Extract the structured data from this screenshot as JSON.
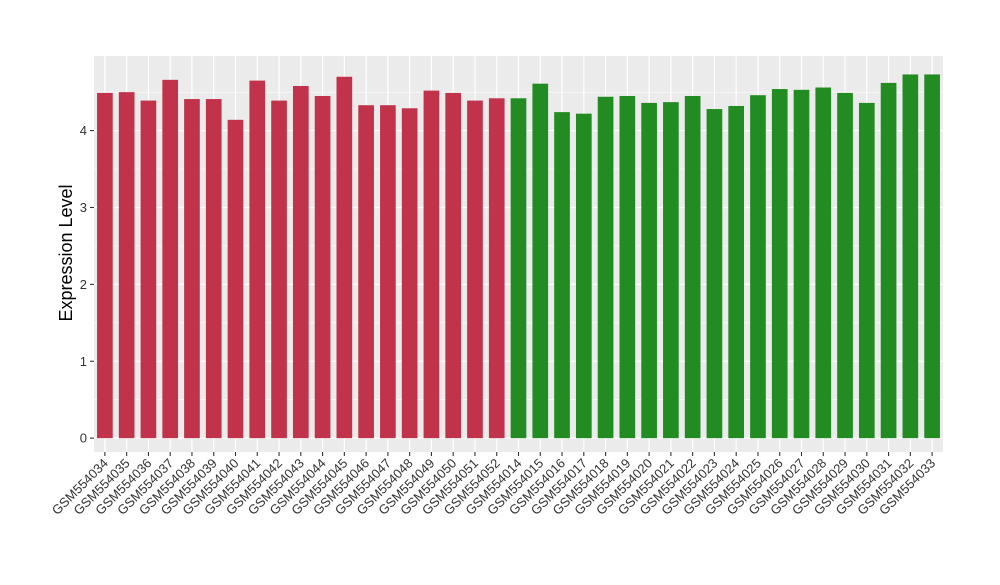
{
  "chart_data": {
    "type": "bar",
    "title": "",
    "xlabel": "",
    "ylabel": "Expression Level",
    "ylim": [
      -0.18,
      4.97
    ],
    "yticks": [
      0,
      1,
      2,
      3,
      4
    ],
    "grid": true,
    "legend": "none",
    "categories": [
      "GSM554034",
      "GSM554035",
      "GSM554036",
      "GSM554037",
      "GSM554038",
      "GSM554039",
      "GSM554040",
      "GSM554041",
      "GSM554042",
      "GSM554043",
      "GSM554044",
      "GSM554045",
      "GSM554046",
      "GSM554047",
      "GSM554048",
      "GSM554049",
      "GSM554050",
      "GSM554051",
      "GSM554052",
      "GSM554014",
      "GSM554015",
      "GSM554016",
      "GSM554017",
      "GSM554018",
      "GSM554019",
      "GSM554020",
      "GSM554021",
      "GSM554022",
      "GSM554023",
      "GSM554024",
      "GSM554025",
      "GSM554026",
      "GSM554027",
      "GSM554028",
      "GSM554029",
      "GSM554030",
      "GSM554031",
      "GSM554032",
      "GSM554033"
    ],
    "values": [
      4.49,
      4.5,
      4.39,
      4.66,
      4.41,
      4.41,
      4.14,
      4.65,
      4.39,
      4.58,
      4.45,
      4.7,
      4.33,
      4.33,
      4.29,
      4.52,
      4.49,
      4.39,
      4.42,
      4.42,
      4.61,
      4.24,
      4.22,
      4.44,
      4.45,
      4.36,
      4.37,
      4.45,
      4.28,
      4.32,
      4.46,
      4.54,
      4.53,
      4.56,
      4.49,
      4.36,
      4.62,
      4.73,
      4.73
    ],
    "colors": [
      "#C0334A",
      "#C0334A",
      "#C0334A",
      "#C0334A",
      "#C0334A",
      "#C0334A",
      "#C0334A",
      "#C0334A",
      "#C0334A",
      "#C0334A",
      "#C0334A",
      "#C0334A",
      "#C0334A",
      "#C0334A",
      "#C0334A",
      "#C0334A",
      "#C0334A",
      "#C0334A",
      "#C0334A",
      "#228B22",
      "#228B22",
      "#228B22",
      "#228B22",
      "#228B22",
      "#228B22",
      "#228B22",
      "#228B22",
      "#228B22",
      "#228B22",
      "#228B22",
      "#228B22",
      "#228B22",
      "#228B22",
      "#228B22",
      "#228B22",
      "#228B22",
      "#228B22",
      "#228B22",
      "#228B22"
    ],
    "panel_background": "#EBEBEB",
    "grid_color": "#FFFFFF"
  }
}
